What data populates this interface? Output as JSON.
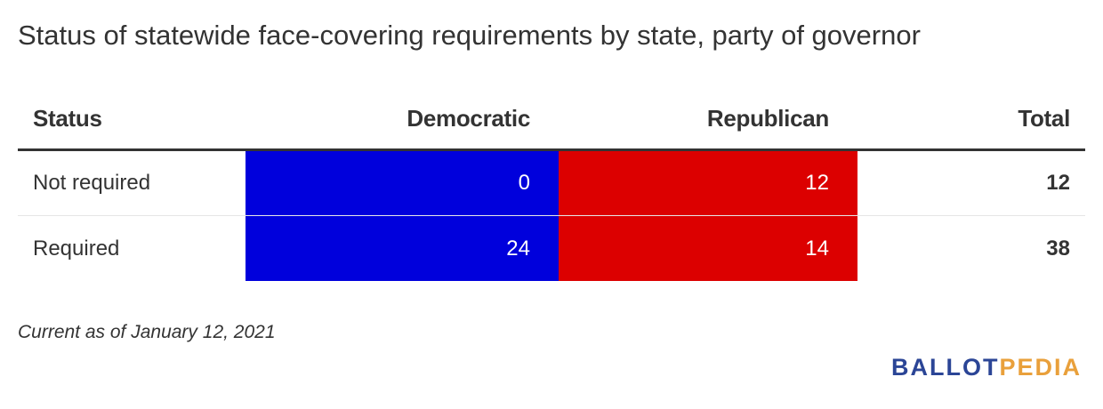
{
  "title": "Status of statewide face-covering requirements by state, party of governor",
  "colors": {
    "democratic": "#0000dc",
    "republican": "#dc0000",
    "text": "#333333"
  },
  "chart_data": {
    "type": "table",
    "columns": [
      "Status",
      "Democratic",
      "Republican",
      "Total"
    ],
    "rows": [
      {
        "status": "Not required",
        "democratic": 0,
        "republican": 12,
        "total": 12
      },
      {
        "status": "Required",
        "democratic": 24,
        "republican": 14,
        "total": 38
      }
    ]
  },
  "footnote": "Current as of January 12, 2021",
  "logo": {
    "part1": "BALLOT",
    "part2": "PEDIA"
  }
}
